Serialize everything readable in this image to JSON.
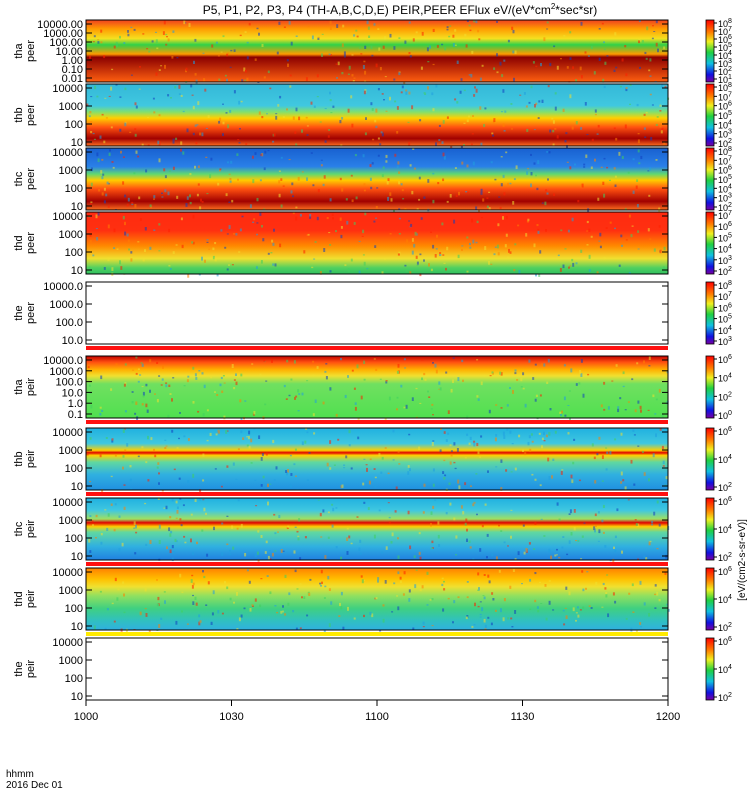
{
  "chart_data": {
    "type": "heatmap",
    "title": "P5, P1, P2, P3, P4 (TH-A,B,C,D,E) PEIR,PEER EFlux eV/(eV*cm",
    "title_sup": "2",
    "title_tail": "*sec*sr)",
    "x_axis": {
      "label": "hhmm",
      "date": "2016 Dec 01",
      "ticks": [
        "1000",
        "1030",
        "1100",
        "1130",
        "1200"
      ],
      "range_hhmm": [
        "1000",
        "1200"
      ]
    },
    "colorbar_label": "[eV/(cm2-s-sr-eV)]",
    "panels": [
      {
        "label": [
          "tha",
          "peer"
        ],
        "yticks": [
          "10000.00",
          "1000.00",
          "100.00",
          "10.00",
          "1.00",
          "0.10",
          "0.01"
        ],
        "cbar_ticks": [
          "10^8",
          "10^7",
          "10^6",
          "10^5",
          "10^4",
          "10^3",
          "10^2",
          "10^1"
        ],
        "bands": [
          "#f04020 0",
          "#ff9a00 14",
          "#f5e020 30",
          "#30d048 40",
          "#ff9a00 55",
          "#8a0000 60",
          "#ff6010 100"
        ]
      },
      {
        "label": [
          "thb",
          "peer"
        ],
        "yticks": [
          "10000",
          "1000",
          "100",
          "10"
        ],
        "cbar_ticks": [
          "10^8",
          "10^7",
          "10^6",
          "10^5",
          "10^4",
          "10^3",
          "10^2"
        ],
        "bands": [
          "#34b8d8 0",
          "#40c8e0 35",
          "#80e070 45",
          "#ffd000 55",
          "#ff5010 70",
          "#a00000 88",
          "#ff7020 100"
        ]
      },
      {
        "label": [
          "thc",
          "peer"
        ],
        "yticks": [
          "10000",
          "1000",
          "100",
          "10"
        ],
        "cbar_ticks": [
          "10^8",
          "10^7",
          "10^6",
          "10^5",
          "10^4",
          "10^3",
          "10^2"
        ],
        "bands": [
          "#1860d0 0",
          "#2a80e8 30",
          "#60d870 42",
          "#ffcc00 52",
          "#ff5010 66",
          "#a00000 86",
          "#ff7020 100"
        ]
      },
      {
        "label": [
          "thd",
          "peer"
        ],
        "yticks": [
          "10000",
          "1000",
          "100",
          "10"
        ],
        "cbar_ticks": [
          "10^7",
          "10^6",
          "10^5",
          "10^4",
          "10^3",
          "10^2"
        ],
        "bands": [
          "#ff2a10 0",
          "#ff3010 30",
          "#ff8a00 55",
          "#f0e030 75",
          "#50d060 90",
          "#30c060 100"
        ]
      },
      {
        "label": [
          "the",
          "peer"
        ],
        "yticks": [
          "10000.0",
          "1000.0",
          "100.0",
          "10.0"
        ],
        "cbar_ticks": [
          "10^8",
          "10^7",
          "10^6",
          "10^5",
          "10^4",
          "10^3"
        ],
        "empty": true
      },
      {
        "label": [
          "tha",
          "peir"
        ],
        "yticks": [
          "10000.0",
          "1000.0",
          "100.0",
          "10.0",
          "1.0",
          "0.1"
        ],
        "cbar_ticks": [
          "10^6",
          "10^4",
          "10^2",
          "10^0"
        ],
        "bands": [
          "#c00000 0",
          "#ff5010 10",
          "#ffb000 22",
          "#f0e030 32",
          "#70e060 45",
          "#50e050 100"
        ]
      },
      {
        "label": [
          "thb",
          "peir"
        ],
        "yticks": [
          "10000",
          "1000",
          "100",
          "10"
        ],
        "cbar_ticks": [
          "10^6",
          "10^4",
          "10^2"
        ],
        "bands": [
          "#20b0e0 0",
          "#40c8e0 25",
          "#ffd000 36",
          "#e00000 40",
          "#ffd000 44",
          "#60d8a0 55",
          "#30b0e0 75",
          "#2090e0 100"
        ]
      },
      {
        "label": [
          "thc",
          "peir"
        ],
        "yticks": [
          "10000",
          "1000",
          "100",
          "10"
        ],
        "cbar_ticks": [
          "10^6",
          "10^4",
          "10^2"
        ],
        "bands": [
          "#20b0e0 0",
          "#40c8e0 20",
          "#a0e060 34",
          "#e00000 40",
          "#ffd000 46",
          "#60d8a0 55",
          "#30b0e0 78",
          "#2080e0 100"
        ]
      },
      {
        "label": [
          "thd",
          "peir"
        ],
        "yticks": [
          "10000",
          "1000",
          "100",
          "10"
        ],
        "cbar_ticks": [
          "10^6",
          "10^4",
          "10^2"
        ],
        "bands": [
          "#ff8000 0",
          "#ffc000 18",
          "#f0e030 30",
          "#90e060 45",
          "#40d080 65",
          "#30c0c0 85",
          "#30b0e0 100"
        ]
      },
      {
        "label": [
          "the",
          "peir"
        ],
        "yticks": [
          "10000",
          "1000",
          "100",
          "10"
        ],
        "cbar_ticks": [
          "10^6",
          "10^4",
          "10^2"
        ],
        "empty": true
      }
    ]
  }
}
